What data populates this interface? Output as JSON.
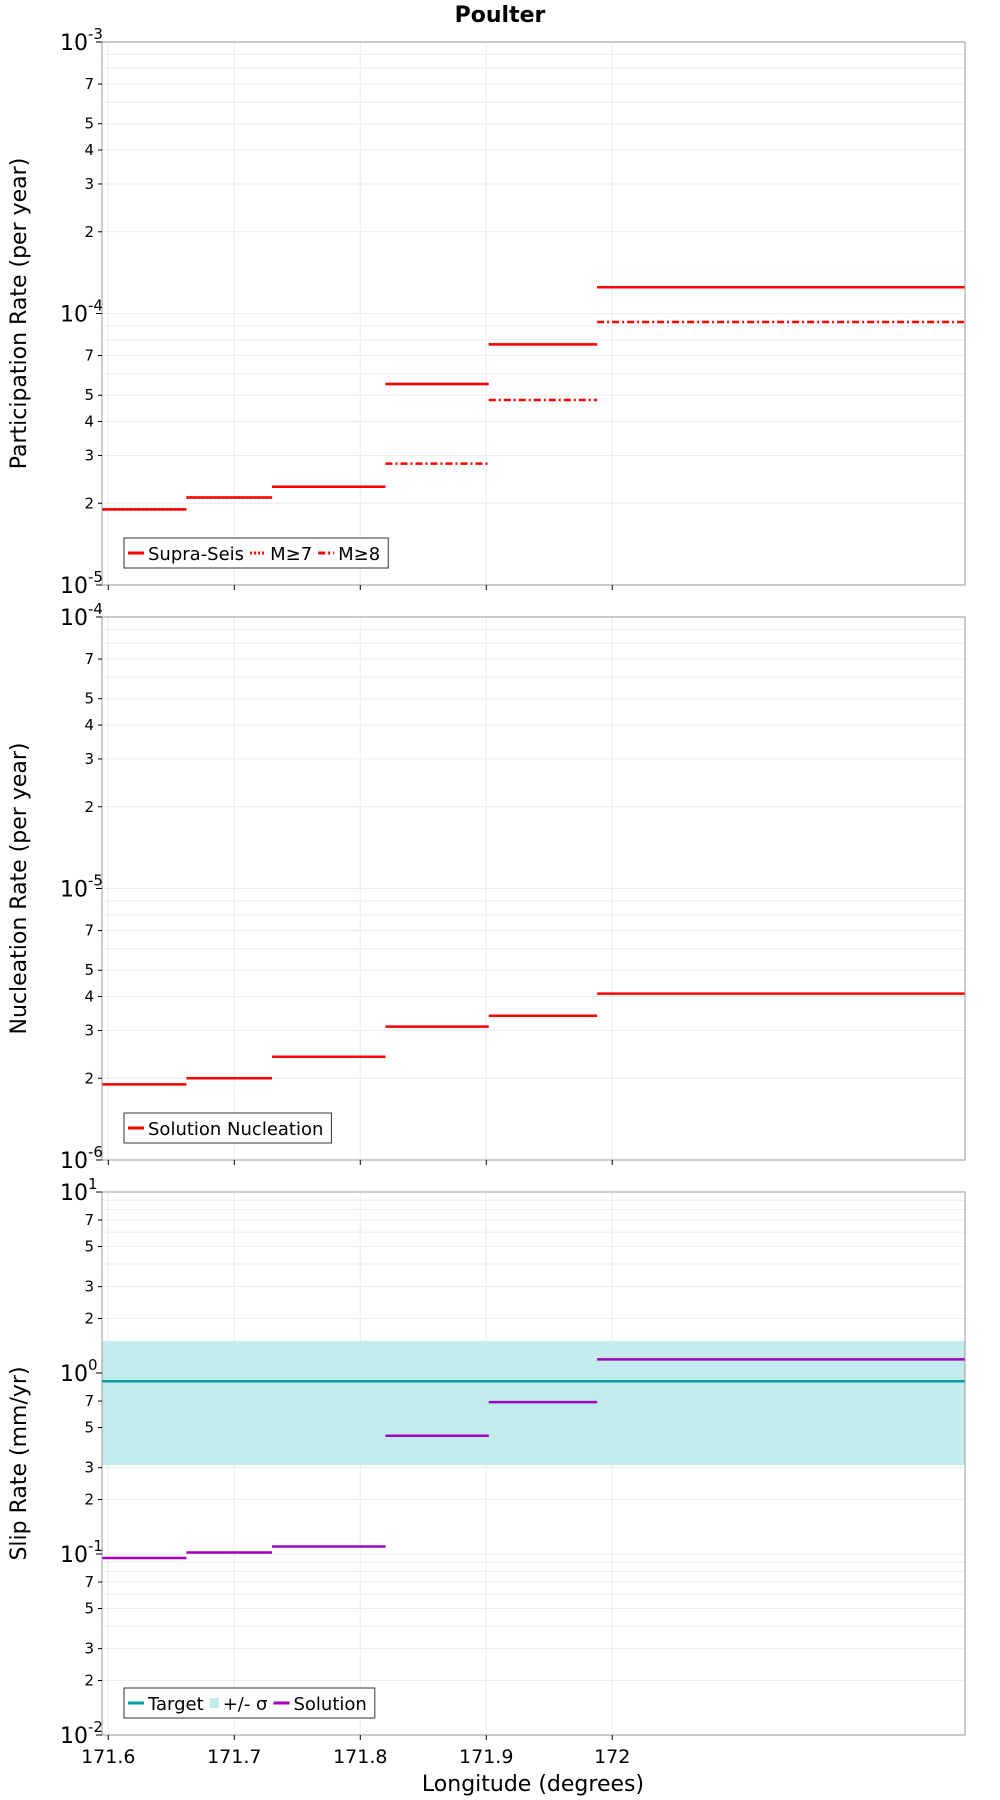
{
  "figure": {
    "title": "Poulter",
    "xlabel": "Longitude (degrees)"
  },
  "chart_data": [
    {
      "type": "line",
      "ylabel": "Participation Rate (per year)",
      "yscale": "log",
      "ylim": [
        1e-05,
        0.001
      ],
      "xlim": [
        171.595,
        172.28
      ],
      "xticks": [
        "171.6",
        "171.7",
        "171.8",
        "171.9",
        "172"
      ],
      "yticks_major": [
        {
          "base": "10",
          "exp": "-5",
          "value": 1e-05
        },
        {
          "base": "10",
          "exp": "-4",
          "value": 0.0001
        },
        {
          "base": "10",
          "exp": "-3",
          "value": 0.001
        }
      ],
      "yticks_minor": [
        "2",
        "3",
        "4",
        "5",
        "7"
      ],
      "grid": true,
      "legend": {
        "position": "bottom-left",
        "entries": [
          "Supra-Seis",
          "M≥7",
          "M≥8"
        ]
      },
      "series": [
        {
          "name": "Supra-Seis",
          "style": "solid",
          "color": "#ff0000",
          "values": [
            1.9e-05,
            2.1e-05,
            2.3e-05,
            5.5e-05,
            7.7e-05,
            0.000125
          ]
        },
        {
          "name": "M≥7",
          "style": "dotted",
          "color": "#ff0000",
          "values": [
            1.9e-05,
            2.1e-05,
            2.3e-05,
            5.5e-05,
            7.7e-05,
            0.000125
          ]
        },
        {
          "name": "M≥8",
          "style": "dashdot",
          "color": "#ff0000",
          "values": [
            null,
            null,
            null,
            2.8e-05,
            4.8e-05,
            9.3e-05
          ]
        }
      ],
      "segments_x": [
        [
          171.595,
          171.662
        ],
        [
          171.662,
          171.73
        ],
        [
          171.73,
          171.82
        ],
        [
          171.82,
          171.902
        ],
        [
          171.902,
          171.988
        ],
        [
          171.988,
          172.28
        ]
      ]
    },
    {
      "type": "line",
      "ylabel": "Nucleation Rate (per year)",
      "yscale": "log",
      "ylim": [
        1e-06,
        0.0001
      ],
      "xlim": [
        171.595,
        172.28
      ],
      "xticks": [
        "171.6",
        "171.7",
        "171.8",
        "171.9",
        "172"
      ],
      "yticks_major": [
        {
          "base": "10",
          "exp": "-6",
          "value": 1e-06
        },
        {
          "base": "10",
          "exp": "-5",
          "value": 1e-05
        },
        {
          "base": "10",
          "exp": "-4",
          "value": 0.0001
        }
      ],
      "yticks_minor": [
        "2",
        "3",
        "4",
        "5",
        "7"
      ],
      "grid": true,
      "legend": {
        "position": "bottom-left",
        "entries": [
          "Solution Nucleation"
        ]
      },
      "series": [
        {
          "name": "Solution Nucleation",
          "style": "solid",
          "color": "#ff0000",
          "values": [
            1.9e-06,
            2e-06,
            2.4e-06,
            3.1e-06,
            3.4e-06,
            4.1e-06
          ]
        }
      ],
      "segments_x": [
        [
          171.595,
          171.662
        ],
        [
          171.662,
          171.73
        ],
        [
          171.73,
          171.82
        ],
        [
          171.82,
          171.902
        ],
        [
          171.902,
          171.988
        ],
        [
          171.988,
          172.28
        ]
      ]
    },
    {
      "type": "line",
      "ylabel": "Slip Rate (mm/yr)",
      "yscale": "log",
      "ylim": [
        0.01,
        10
      ],
      "xlim": [
        171.595,
        172.28
      ],
      "xticks": [
        "171.6",
        "171.7",
        "171.8",
        "171.9",
        "172"
      ],
      "yticks_major": [
        {
          "base": "10",
          "exp": "-2",
          "value": 0.01
        },
        {
          "base": "10",
          "exp": "-1",
          "value": 0.1
        },
        {
          "base": "10",
          "exp": "0",
          "value": 1
        },
        {
          "base": "10",
          "exp": "1",
          "value": 10
        }
      ],
      "yticks_minor": [
        "2",
        "3",
        "5",
        "7"
      ],
      "grid": true,
      "legend": {
        "position": "bottom-left",
        "entries": [
          "Target",
          "+/- σ",
          "Solution"
        ]
      },
      "target": {
        "value": 0.9,
        "band": [
          0.31,
          1.5
        ],
        "color": "#00a0a0",
        "band_color": "#c2ecec"
      },
      "series": [
        {
          "name": "Solution",
          "style": "solid",
          "color": "#a000c0",
          "values": [
            0.095,
            0.102,
            0.11,
            0.45,
            0.69,
            1.19
          ]
        }
      ],
      "segments_x": [
        [
          171.595,
          171.662
        ],
        [
          171.662,
          171.73
        ],
        [
          171.73,
          171.82
        ],
        [
          171.82,
          171.902
        ],
        [
          171.902,
          171.988
        ],
        [
          171.988,
          172.28
        ]
      ]
    }
  ]
}
